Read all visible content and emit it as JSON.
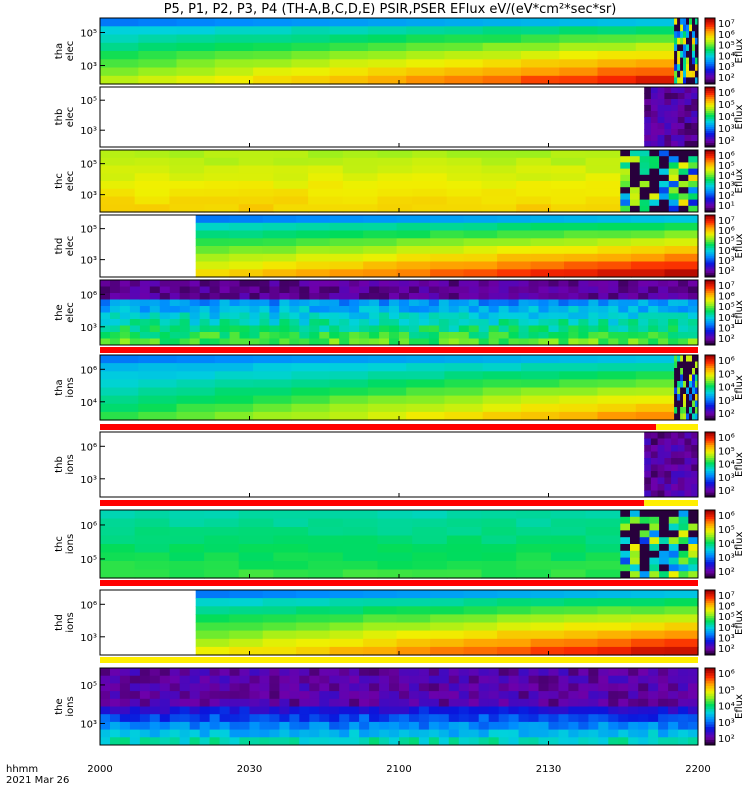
{
  "chart_data": {
    "type": "heatmap",
    "title": "P5, P1, P2, P3, P4 (TH-A,B,C,D,E) PSIR,PSER EFlux eV/(eV*cm²*sec*sr)",
    "x_ticks": [
      "2000",
      "2030",
      "2100",
      "2130",
      "2200"
    ],
    "x_corner_label": [
      "hhmm",
      "2021 Mar 26"
    ],
    "colorbar_label": "Eflux",
    "panels": [
      {
        "id": "tha-elec",
        "label": [
          "tha",
          "elec"
        ],
        "yticks": [
          "10⁵",
          "10³"
        ],
        "cbar_ticks": [
          "10⁷",
          "10⁶",
          "10⁵",
          "10⁴",
          "10³",
          "10²"
        ],
        "pattern": "gradient",
        "start_frac": 0.0,
        "burst_frac": 0.96,
        "low": 0.55,
        "high": 0.93
      },
      {
        "id": "thb-elec",
        "label": [
          "thb",
          "elec"
        ],
        "yticks": [
          "10⁵",
          "10³"
        ],
        "cbar_ticks": [
          "10⁶",
          "10⁵",
          "10⁴",
          "10³",
          "10²"
        ],
        "pattern": "empty-burst",
        "start_frac": 0.0,
        "burst_frac": 0.91
      },
      {
        "id": "thc-elec",
        "label": [
          "thc",
          "elec"
        ],
        "yticks": [
          "10⁵",
          "10³"
        ],
        "cbar_ticks": [
          "10⁶",
          "10⁵",
          "10⁴",
          "10³",
          "10²",
          "10¹"
        ],
        "pattern": "uniform",
        "start_frac": 0.0,
        "burst_frac": 0.87,
        "low": 0.64,
        "high": 0.74
      },
      {
        "id": "thd-elec",
        "label": [
          "thd",
          "elec"
        ],
        "yticks": [
          "10⁵",
          "10³"
        ],
        "cbar_ticks": [
          "10⁷",
          "10⁶",
          "10⁵",
          "10⁴",
          "10³",
          "10²"
        ],
        "pattern": "gradient",
        "start_frac": 0.16,
        "burst_frac": 1.0,
        "low": 0.65,
        "high": 0.97
      },
      {
        "id": "the-elec",
        "label": [
          "the",
          "elec"
        ],
        "yticks": [
          "10⁶",
          "10³"
        ],
        "cbar_ticks": [
          "10⁷",
          "10⁶",
          "10⁵",
          "10⁴",
          "10³",
          "10²"
        ],
        "pattern": "noisy",
        "start_frac": 0.0,
        "burst_frac": 1.0
      },
      {
        "id": "tha-ions",
        "label": [
          "tha",
          "ions"
        ],
        "yticks": [
          "10⁶",
          "10⁴"
        ],
        "cbar_ticks": [
          "10⁶",
          "10⁵",
          "10⁴",
          "10³",
          "10²"
        ],
        "pattern": "gradient-ions",
        "start_frac": 0.0,
        "burst_frac": 0.96,
        "low": 0.45,
        "high": 0.82
      },
      {
        "id": "thb-ions",
        "label": [
          "thb",
          "ions"
        ],
        "yticks": [
          "10⁶",
          "10³"
        ],
        "cbar_ticks": [
          "10⁶",
          "10⁵",
          "10⁴",
          "10³",
          "10²"
        ],
        "pattern": "empty-burst",
        "start_frac": 0.0,
        "burst_frac": 0.91
      },
      {
        "id": "thc-ions",
        "label": [
          "thc",
          "ions"
        ],
        "yticks": [
          "10⁶",
          "10⁵"
        ],
        "cbar_ticks": [
          "10⁶",
          "10⁵",
          "10⁴",
          "10³",
          "10²"
        ],
        "pattern": "uniform",
        "start_frac": 0.0,
        "burst_frac": 0.87,
        "low": 0.46,
        "high": 0.55
      },
      {
        "id": "thd-ions",
        "label": [
          "thd",
          "ions"
        ],
        "yticks": [
          "10⁶",
          "10³"
        ],
        "cbar_ticks": [
          "10⁷",
          "10⁶",
          "10⁵",
          "10⁴",
          "10³",
          "10²"
        ],
        "pattern": "gradient",
        "start_frac": 0.16,
        "burst_frac": 1.0,
        "low": 0.6,
        "high": 0.96
      },
      {
        "id": "the-ions",
        "label": [
          "the",
          "ions"
        ],
        "yticks": [
          "10⁵",
          "10³"
        ],
        "cbar_ticks": [
          "10⁶",
          "10⁵",
          "10⁴",
          "10³",
          "10²"
        ],
        "pattern": "noisy-ions",
        "start_frac": 0.0,
        "burst_frac": 1.0
      }
    ]
  }
}
